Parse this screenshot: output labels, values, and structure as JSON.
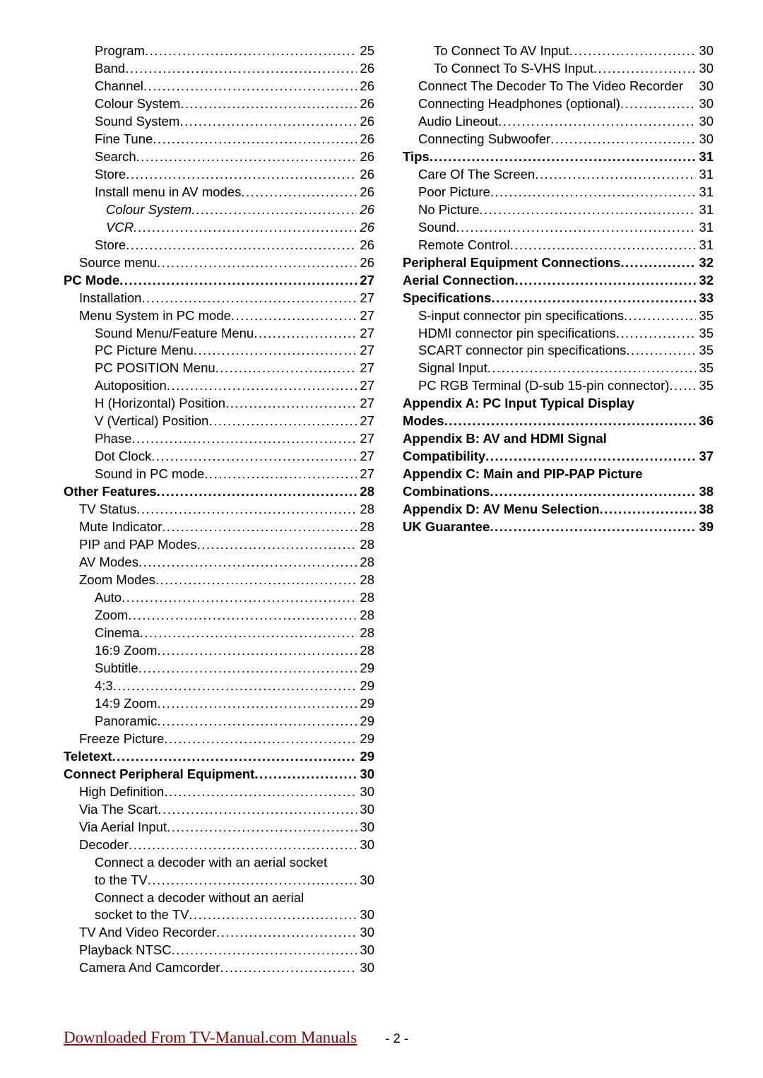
{
  "columns": [
    [
      {
        "label": "Program",
        "page": "25",
        "indent": 2,
        "bold": false,
        "italic": false,
        "nodots": false
      },
      {
        "label": "Band",
        "page": "26",
        "indent": 2,
        "bold": false,
        "italic": false,
        "nodots": false
      },
      {
        "label": "Channel",
        "page": "26",
        "indent": 2,
        "bold": false,
        "italic": false,
        "nodots": false
      },
      {
        "label": "Colour System",
        "page": "26",
        "indent": 2,
        "bold": false,
        "italic": false,
        "nodots": false
      },
      {
        "label": "Sound System",
        "page": "26",
        "indent": 2,
        "bold": false,
        "italic": false,
        "nodots": false
      },
      {
        "label": "Fine Tune",
        "page": "26",
        "indent": 2,
        "bold": false,
        "italic": false,
        "nodots": false
      },
      {
        "label": "Search",
        "page": "26",
        "indent": 2,
        "bold": false,
        "italic": false,
        "nodots": false
      },
      {
        "label": "Store",
        "page": "26",
        "indent": 2,
        "bold": false,
        "italic": false,
        "nodots": false
      },
      {
        "label": "Install menu in AV modes",
        "page": "26",
        "indent": 2,
        "bold": false,
        "italic": false,
        "nodots": false
      },
      {
        "label": "Colour System",
        "page": "26",
        "indent": 3,
        "bold": false,
        "italic": true,
        "nodots": false
      },
      {
        "label": "VCR",
        "page": "26",
        "indent": 3,
        "bold": false,
        "italic": true,
        "nodots": false
      },
      {
        "label": "Store",
        "page": "26",
        "indent": 2,
        "bold": false,
        "italic": false,
        "nodots": false
      },
      {
        "label": "Source menu",
        "page": "26",
        "indent": 1,
        "bold": false,
        "italic": false,
        "nodots": false
      },
      {
        "label": "PC Mode",
        "page": "27",
        "indent": 0,
        "bold": true,
        "italic": false,
        "nodots": false
      },
      {
        "label": "Installation",
        "page": "27",
        "indent": 1,
        "bold": false,
        "italic": false,
        "nodots": false
      },
      {
        "label": "Menu System in PC mode",
        "page": "27",
        "indent": 1,
        "bold": false,
        "italic": false,
        "nodots": false
      },
      {
        "label": "Sound Menu/Feature Menu",
        "page": "27",
        "indent": 2,
        "bold": false,
        "italic": false,
        "nodots": false
      },
      {
        "label": "PC Picture Menu",
        "page": "27",
        "indent": 2,
        "bold": false,
        "italic": false,
        "nodots": false
      },
      {
        "label": "PC POSITION Menu",
        "page": "27",
        "indent": 2,
        "bold": false,
        "italic": false,
        "nodots": false
      },
      {
        "label": "Autoposition",
        "page": "27",
        "indent": 2,
        "bold": false,
        "italic": false,
        "nodots": false
      },
      {
        "label": "H (Horizontal) Position",
        "page": "27",
        "indent": 2,
        "bold": false,
        "italic": false,
        "nodots": false
      },
      {
        "label": "V (Vertical) Position",
        "page": "27",
        "indent": 2,
        "bold": false,
        "italic": false,
        "nodots": false
      },
      {
        "label": "Phase",
        "page": "27",
        "indent": 2,
        "bold": false,
        "italic": false,
        "nodots": false
      },
      {
        "label": "Dot Clock",
        "page": "27",
        "indent": 2,
        "bold": false,
        "italic": false,
        "nodots": false
      },
      {
        "label": "Sound in PC mode",
        "page": "27",
        "indent": 2,
        "bold": false,
        "italic": false,
        "nodots": false
      },
      {
        "label": "Other Features",
        "page": "28",
        "indent": 0,
        "bold": true,
        "italic": false,
        "nodots": false
      },
      {
        "label": "TV Status",
        "page": "28",
        "indent": 1,
        "bold": false,
        "italic": false,
        "nodots": false
      },
      {
        "label": "Mute Indicator",
        "page": "28",
        "indent": 1,
        "bold": false,
        "italic": false,
        "nodots": false
      },
      {
        "label": "PIP and PAP Modes",
        "page": "28",
        "indent": 1,
        "bold": false,
        "italic": false,
        "nodots": false
      },
      {
        "label": "AV Modes",
        "page": "28",
        "indent": 1,
        "bold": false,
        "italic": false,
        "nodots": false
      },
      {
        "label": "Zoom Modes",
        "page": "28",
        "indent": 1,
        "bold": false,
        "italic": false,
        "nodots": false
      },
      {
        "label": "Auto",
        "page": "28",
        "indent": 2,
        "bold": false,
        "italic": false,
        "nodots": false
      },
      {
        "label": "Zoom",
        "page": "28",
        "indent": 2,
        "bold": false,
        "italic": false,
        "nodots": false
      },
      {
        "label": "Cinema",
        "page": "28",
        "indent": 2,
        "bold": false,
        "italic": false,
        "nodots": false
      },
      {
        "label": "16:9 Zoom",
        "page": "28",
        "indent": 2,
        "bold": false,
        "italic": false,
        "nodots": false
      },
      {
        "label": "Subtitle",
        "page": "29",
        "indent": 2,
        "bold": false,
        "italic": false,
        "nodots": false
      },
      {
        "label": "4:3",
        "page": "29",
        "indent": 2,
        "bold": false,
        "italic": false,
        "nodots": false
      },
      {
        "label": "14:9 Zoom",
        "page": "29",
        "indent": 2,
        "bold": false,
        "italic": false,
        "nodots": false
      },
      {
        "label": "Panoramic",
        "page": "29",
        "indent": 2,
        "bold": false,
        "italic": false,
        "nodots": false
      },
      {
        "label": "Freeze Picture",
        "page": "29",
        "indent": 1,
        "bold": false,
        "italic": false,
        "nodots": false
      },
      {
        "label": "Teletext",
        "page": "29",
        "indent": 0,
        "bold": true,
        "italic": false,
        "nodots": false
      },
      {
        "label": "Connect Peripheral Equipment",
        "page": "30",
        "indent": 0,
        "bold": true,
        "italic": false,
        "nodots": false
      },
      {
        "label": "High Definition",
        "page": "30",
        "indent": 1,
        "bold": false,
        "italic": false,
        "nodots": false
      },
      {
        "label": "Via The Scart",
        "page": "30",
        "indent": 1,
        "bold": false,
        "italic": false,
        "nodots": false
      },
      {
        "label": "Via Aerial Input",
        "page": "30",
        "indent": 1,
        "bold": false,
        "italic": false,
        "nodots": false
      },
      {
        "label": "Decoder",
        "page": "30",
        "indent": 1,
        "bold": false,
        "italic": false,
        "nodots": false
      },
      {
        "label_first": "Connect a decoder with an aerial socket",
        "label_last": "to the TV",
        "page": "30",
        "indent": 2,
        "multiline": true
      },
      {
        "label_first": "Connect a decoder without an aerial",
        "label_last": "socket to the TV",
        "page": "30",
        "indent": 2,
        "multiline": true
      },
      {
        "label": "TV And Video Recorder",
        "page": "30",
        "indent": 1,
        "bold": false,
        "italic": false,
        "nodots": false
      },
      {
        "label": "Playback NTSC",
        "page": "30",
        "indent": 1,
        "bold": false,
        "italic": false,
        "nodots": false
      },
      {
        "label": "Camera And Camcorder",
        "page": "30",
        "indent": 1,
        "bold": false,
        "italic": false,
        "nodots": false
      }
    ],
    [
      {
        "label": "To Connect To AV Input",
        "page": "30",
        "indent": 2,
        "bold": false,
        "italic": false,
        "nodots": false
      },
      {
        "label": "To Connect To S-VHS Input",
        "page": "30",
        "indent": 2,
        "bold": false,
        "italic": false,
        "nodots": false
      },
      {
        "label": "Connect The Decoder To The Video Recorder",
        "page": "30",
        "indent": 1,
        "bold": false,
        "italic": false,
        "nodots": true
      },
      {
        "label": "Connecting Headphones (optional)",
        "page": "30",
        "indent": 1,
        "bold": false,
        "italic": false,
        "nodots": false
      },
      {
        "label": "Audio Lineout",
        "page": "30",
        "indent": 1,
        "bold": false,
        "italic": false,
        "nodots": false
      },
      {
        "label": "Connecting Subwoofer",
        "page": "30",
        "indent": 1,
        "bold": false,
        "italic": false,
        "nodots": false
      },
      {
        "label": "Tips",
        "page": "31",
        "indent": 0,
        "bold": true,
        "italic": false,
        "nodots": false
      },
      {
        "label": "Care Of The Screen",
        "page": "31",
        "indent": 1,
        "bold": false,
        "italic": false,
        "nodots": false
      },
      {
        "label": "Poor Picture",
        "page": "31",
        "indent": 1,
        "bold": false,
        "italic": false,
        "nodots": false
      },
      {
        "label": "No Picture",
        "page": "31",
        "indent": 1,
        "bold": false,
        "italic": false,
        "nodots": false
      },
      {
        "label": "Sound",
        "page": "31",
        "indent": 1,
        "bold": false,
        "italic": false,
        "nodots": false
      },
      {
        "label": "Remote Control",
        "page": "31",
        "indent": 1,
        "bold": false,
        "italic": false,
        "nodots": false
      },
      {
        "label": "Peripheral Equipment Connections",
        "page": "32",
        "indent": 0,
        "bold": true,
        "italic": false,
        "nodots": false
      },
      {
        "label": "Aerial Connection",
        "page": "32",
        "indent": 0,
        "bold": true,
        "italic": false,
        "nodots": false
      },
      {
        "label": "Specifications",
        "page": "33",
        "indent": 0,
        "bold": true,
        "italic": false,
        "nodots": false
      },
      {
        "label": "S-input connector pin specifications",
        "page": "35",
        "indent": 1,
        "bold": false,
        "italic": false,
        "nodots": false
      },
      {
        "label": "HDMI connector pin specifications",
        "page": "35",
        "indent": 1,
        "bold": false,
        "italic": false,
        "nodots": false
      },
      {
        "label": "SCART connector pin specifications",
        "page": "35",
        "indent": 1,
        "bold": false,
        "italic": false,
        "nodots": false
      },
      {
        "label": "Signal Input",
        "page": "35",
        "indent": 1,
        "bold": false,
        "italic": false,
        "nodots": false
      },
      {
        "label": "PC RGB Terminal (D-sub 15-pin connector)",
        "page": "35",
        "indent": 1,
        "bold": false,
        "italic": false,
        "nodots": false
      },
      {
        "label_first": "Appendix A: PC Input Typical Display",
        "label_last": "Modes",
        "page": "36",
        "indent": 0,
        "bold": true,
        "multiline": true
      },
      {
        "label_first": "Appendix B: AV and HDMI Signal",
        "label_last": "Compatibility",
        "page": "37",
        "indent": 0,
        "bold": true,
        "multiline": true
      },
      {
        "label_first": "Appendix C: Main and PIP-PAP Picture",
        "label_last": "Combinations",
        "page": "38",
        "indent": 0,
        "bold": true,
        "multiline": true
      },
      {
        "label": "Appendix D: AV Menu Selection",
        "page": "38",
        "indent": 0,
        "bold": true,
        "italic": false,
        "nodots": false
      },
      {
        "label": "UK Guarantee",
        "page": "39",
        "indent": 0,
        "bold": true,
        "italic": false,
        "nodots": false
      }
    ]
  ],
  "footer": {
    "link_text": "Downloaded From TV-Manual.com Manuals",
    "page_number": "- 2 -"
  }
}
